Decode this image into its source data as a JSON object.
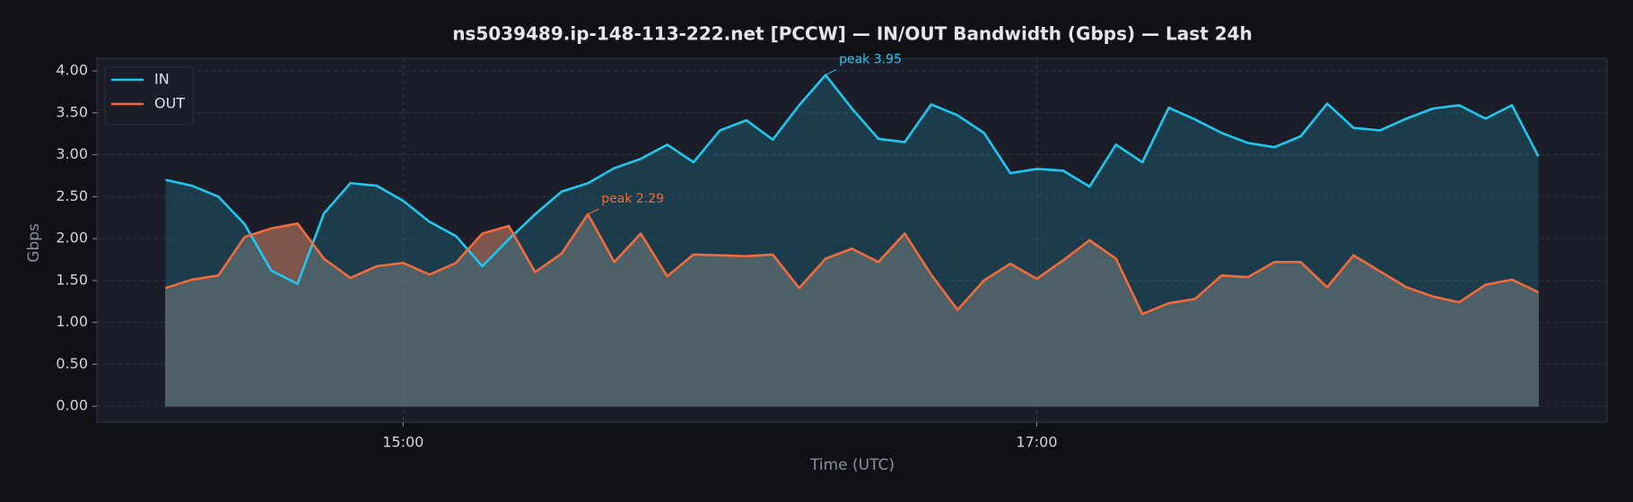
{
  "chart_data": {
    "type": "area-line",
    "title": "ns5039489.ip-148-113-222.net [PCCW] — IN/OUT Bandwidth (Gbps) — Last 24h",
    "x_label": "Time (UTC)",
    "y_label": "Gbps",
    "x": [
      "14:15",
      "14:20",
      "14:25",
      "14:30",
      "14:35",
      "14:40",
      "14:45",
      "14:50",
      "14:55",
      "15:00",
      "15:05",
      "15:10",
      "15:15",
      "15:20",
      "15:25",
      "15:30",
      "15:35",
      "15:40",
      "15:45",
      "15:50",
      "15:55",
      "16:00",
      "16:05",
      "16:10",
      "16:15",
      "16:20",
      "16:25",
      "16:30",
      "16:35",
      "16:40",
      "16:45",
      "16:50",
      "16:55",
      "17:00",
      "17:05",
      "17:10",
      "17:15",
      "17:20",
      "17:25",
      "17:30",
      "17:35",
      "17:40",
      "17:45",
      "17:50",
      "17:55",
      "18:00",
      "18:05",
      "18:10",
      "18:15",
      "18:20",
      "18:25",
      "18:30",
      "18:35"
    ],
    "xlim": [
      "14:02",
      "18:48"
    ],
    "xticks": [
      "15:00",
      "17:00"
    ],
    "ylim": [
      -0.19,
      4.15
    ],
    "yticks": [
      {
        "value": 0,
        "label": "0.00"
      },
      {
        "value": 0.5,
        "label": "0.50"
      },
      {
        "value": 1,
        "label": "1.00"
      },
      {
        "value": 1.5,
        "label": "1.50"
      },
      {
        "value": 2,
        "label": "2.00"
      },
      {
        "value": 2.5,
        "label": "2.50"
      },
      {
        "value": 3,
        "label": "3.00"
      },
      {
        "value": 3.5,
        "label": "3.50"
      },
      {
        "value": 4,
        "label": "4.00"
      }
    ],
    "grid": true,
    "legend": "upper left",
    "series": [
      {
        "name": "IN",
        "color": "#1fc8ef",
        "values": [
          2.7,
          2.63,
          2.5,
          2.17,
          1.62,
          1.46,
          2.3,
          2.66,
          2.63,
          2.45,
          2.2,
          2.03,
          1.67,
          1.99,
          2.29,
          2.56,
          2.66,
          2.84,
          2.95,
          3.12,
          2.91,
          3.29,
          3.41,
          3.18,
          3.59,
          3.95,
          3.55,
          3.19,
          3.15,
          3.6,
          3.47,
          3.26,
          2.78,
          2.83,
          2.81,
          2.62,
          3.12,
          2.91,
          3.56,
          3.42,
          3.26,
          3.14,
          3.09,
          3.22,
          3.61,
          3.32,
          3.29,
          3.43,
          3.55,
          3.59,
          3.43,
          3.59,
          2.98
        ]
      },
      {
        "name": "OUT",
        "color": "#f26b3a",
        "values": [
          1.41,
          1.51,
          1.56,
          2.02,
          2.12,
          2.18,
          1.76,
          1.53,
          1.67,
          1.71,
          1.57,
          1.71,
          2.06,
          2.15,
          1.6,
          1.82,
          2.29,
          1.72,
          2.06,
          1.55,
          1.81,
          1.8,
          1.79,
          1.81,
          1.41,
          1.76,
          1.88,
          1.72,
          2.06,
          1.57,
          1.15,
          1.5,
          1.7,
          1.52,
          1.74,
          1.98,
          1.76,
          1.1,
          1.23,
          1.28,
          1.56,
          1.54,
          1.72,
          1.72,
          1.42,
          1.8,
          1.61,
          1.42,
          1.31,
          1.24,
          1.45,
          1.51,
          1.36
        ]
      }
    ],
    "annotations": [
      {
        "text": "peak 3.95",
        "x": "16:20",
        "y": 3.95,
        "color": "#1fc8ef"
      },
      {
        "text": "peak 2.29",
        "x": "15:35",
        "y": 2.29,
        "color": "#f26b3a"
      }
    ]
  }
}
